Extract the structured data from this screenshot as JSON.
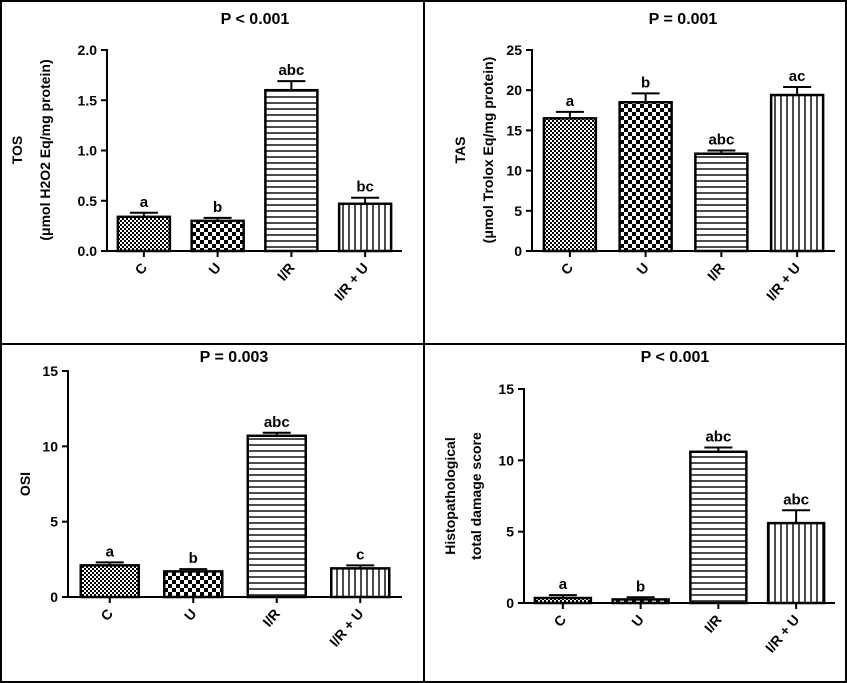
{
  "chart_data": [
    {
      "type": "bar",
      "title": "P < 0.001",
      "ylabel_lines": [
        "TOS",
        "(μmol H2O2 Eq/mg protein)"
      ],
      "categories": [
        "C",
        "U",
        "I/R",
        "I/R + U"
      ],
      "values": [
        0.34,
        0.3,
        1.6,
        0.47
      ],
      "errors": [
        0.04,
        0.03,
        0.09,
        0.06
      ],
      "bar_labels": [
        "a",
        "b",
        "abc",
        "bc"
      ],
      "ylim": [
        0,
        2.0
      ],
      "yticks": [
        "0.0",
        "0.5",
        "1.0",
        "1.5",
        "2.0"
      ]
    },
    {
      "type": "bar",
      "title": "P = 0.001",
      "ylabel_lines": [
        "TAS",
        "(μmol Trolox Eq/mg protein)"
      ],
      "categories": [
        "C",
        "U",
        "I/R",
        "I/R + U"
      ],
      "values": [
        16.5,
        18.5,
        12.1,
        19.4
      ],
      "errors": [
        0.8,
        1.1,
        0.4,
        1.0
      ],
      "bar_labels": [
        "a",
        "b",
        "abc",
        "ac"
      ],
      "ylim": [
        0,
        25
      ],
      "yticks": [
        "0",
        "5",
        "10",
        "15",
        "20",
        "25"
      ]
    },
    {
      "type": "bar",
      "title": "P = 0.003",
      "ylabel_lines": [
        "OSI"
      ],
      "categories": [
        "C",
        "U",
        "I/R",
        "I/R + U"
      ],
      "values": [
        2.1,
        1.7,
        10.7,
        1.9
      ],
      "errors": [
        0.2,
        0.15,
        0.2,
        0.2
      ],
      "bar_labels": [
        "a",
        "b",
        "abc",
        "c"
      ],
      "ylim": [
        0,
        15
      ],
      "yticks": [
        "0",
        "5",
        "10",
        "15"
      ]
    },
    {
      "type": "bar",
      "title": "P < 0.001",
      "ylabel_lines": [
        "Histopathological",
        "total damage score"
      ],
      "categories": [
        "C",
        "U",
        "I/R",
        "I/R + U"
      ],
      "values": [
        0.35,
        0.25,
        10.6,
        5.6
      ],
      "errors": [
        0.2,
        0.15,
        0.3,
        0.9
      ],
      "bar_labels": [
        "a",
        "b",
        "abc",
        "abc"
      ],
      "ylim": [
        0,
        15
      ],
      "yticks": [
        "0",
        "5",
        "10",
        "15"
      ]
    }
  ]
}
